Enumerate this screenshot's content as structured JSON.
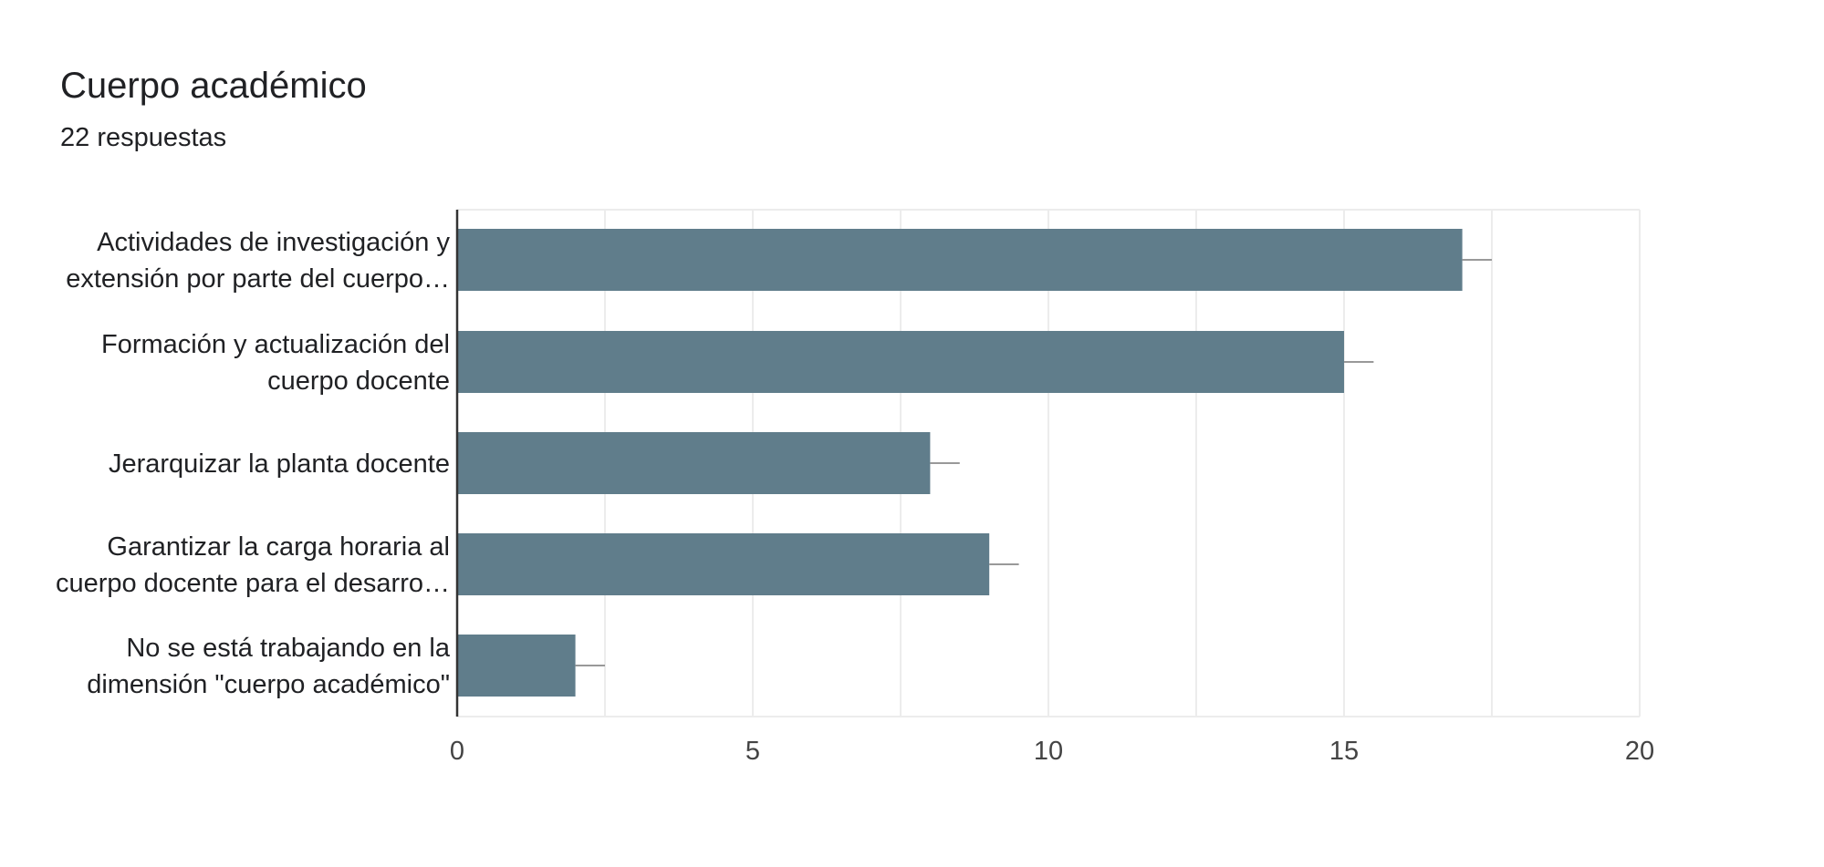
{
  "header": {
    "title": "Cuerpo académico",
    "subtitle": "22 respuestas"
  },
  "colors": {
    "bar": "#607d8b",
    "grid": "#ececec",
    "axis": "#333333",
    "error_bar": "#999999"
  },
  "chart_data": {
    "type": "bar",
    "orientation": "horizontal",
    "title": "Cuerpo académico",
    "subtitle": "22 respuestas",
    "categories": [
      [
        "Actividades de investigación y",
        "extensión por parte del cuerpo…"
      ],
      [
        "Formación y actualización del",
        "cuerpo docente"
      ],
      [
        "Jerarquizar la planta docente"
      ],
      [
        "Garantizar la carga horaria al",
        "cuerpo docente para el desarro…"
      ],
      [
        "No se está trabajando en la",
        "dimensión \"cuerpo académico\""
      ]
    ],
    "values": [
      17,
      15,
      8,
      9,
      2
    ],
    "error_bar": 0.5,
    "xlim": [
      0,
      20
    ],
    "xticks": [
      0,
      5,
      10,
      15,
      20
    ],
    "grid": true,
    "minor_grid": true,
    "legend": "none"
  }
}
